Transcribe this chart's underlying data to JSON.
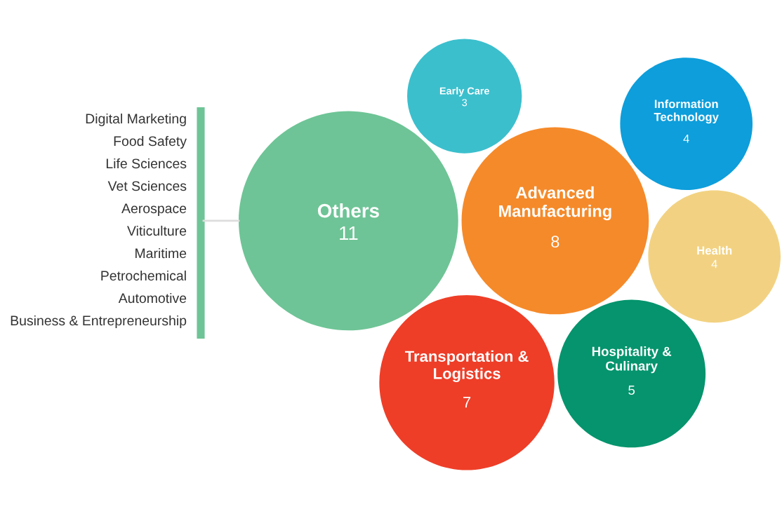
{
  "chart_data": {
    "type": "other",
    "data_labels": true,
    "categories": [
      "Others",
      "Advanced\nManufacturing",
      "Transportation &\nLogistics",
      "Hospitality &\nCulinary",
      "Health",
      "Information\nTechnology",
      "Early Care"
    ],
    "values": [
      11,
      8,
      7,
      5,
      4,
      4,
      3
    ],
    "colors": [
      "#6ec496",
      "#f58a2a",
      "#ee3e28",
      "#05946d",
      "#f2d282",
      "#0d9edb",
      "#3bbfcd"
    ],
    "annotations": [
      "Digital Marketing",
      "Food Safety",
      "Life Sciences",
      "Vet Sciences",
      "Aerospace",
      "Viticulture",
      "Maritime",
      "Petrochemical",
      "Automotive",
      "Business & Entrepreneurship"
    ]
  }
}
